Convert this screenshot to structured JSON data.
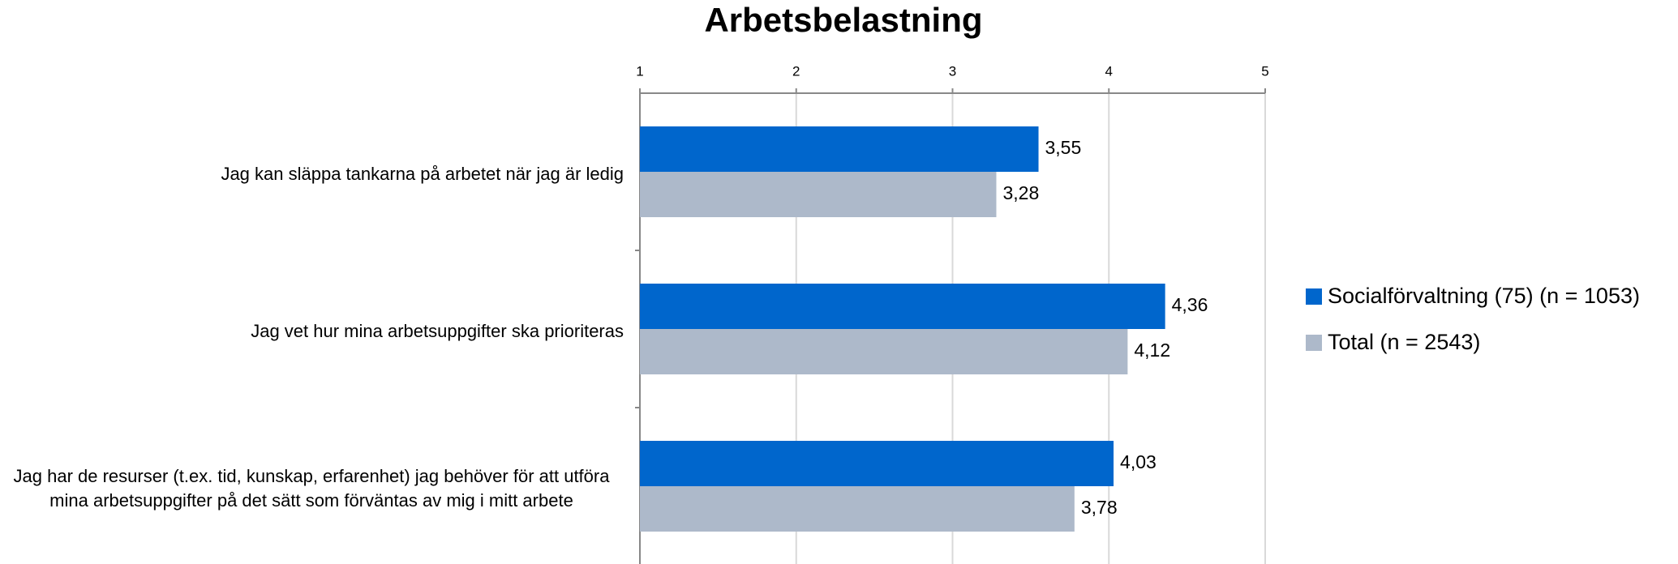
{
  "chart_data": {
    "type": "bar",
    "orientation": "horizontal",
    "title": "Arbetsbelastning",
    "categories": [
      "Jag kan släppa tankarna på arbetet när jag är ledig",
      "Jag vet hur mina arbetsuppgifter ska prioriteras",
      "Jag har de resurser (t.ex. tid, kunskap, erfarenhet) jag behöver för att utföra mina arbetsuppgifter på det sätt som förväntas av mig i mitt arbete"
    ],
    "series": [
      {
        "name": "Socialförvaltning (75) (n = 1053)",
        "color": "#0066cc",
        "values": [
          3.55,
          4.36,
          4.03
        ],
        "value_labels": [
          "3,55",
          "4,36",
          "4,03"
        ]
      },
      {
        "name": "Total (n = 2543)",
        "color": "#adb9ca",
        "values": [
          3.28,
          4.12,
          3.78
        ],
        "value_labels": [
          "3,28",
          "4,12",
          "3,78"
        ]
      }
    ],
    "xlim": [
      1,
      5
    ],
    "xticks": [
      1,
      2,
      3,
      4,
      5
    ],
    "grid": true,
    "legend": "right"
  }
}
